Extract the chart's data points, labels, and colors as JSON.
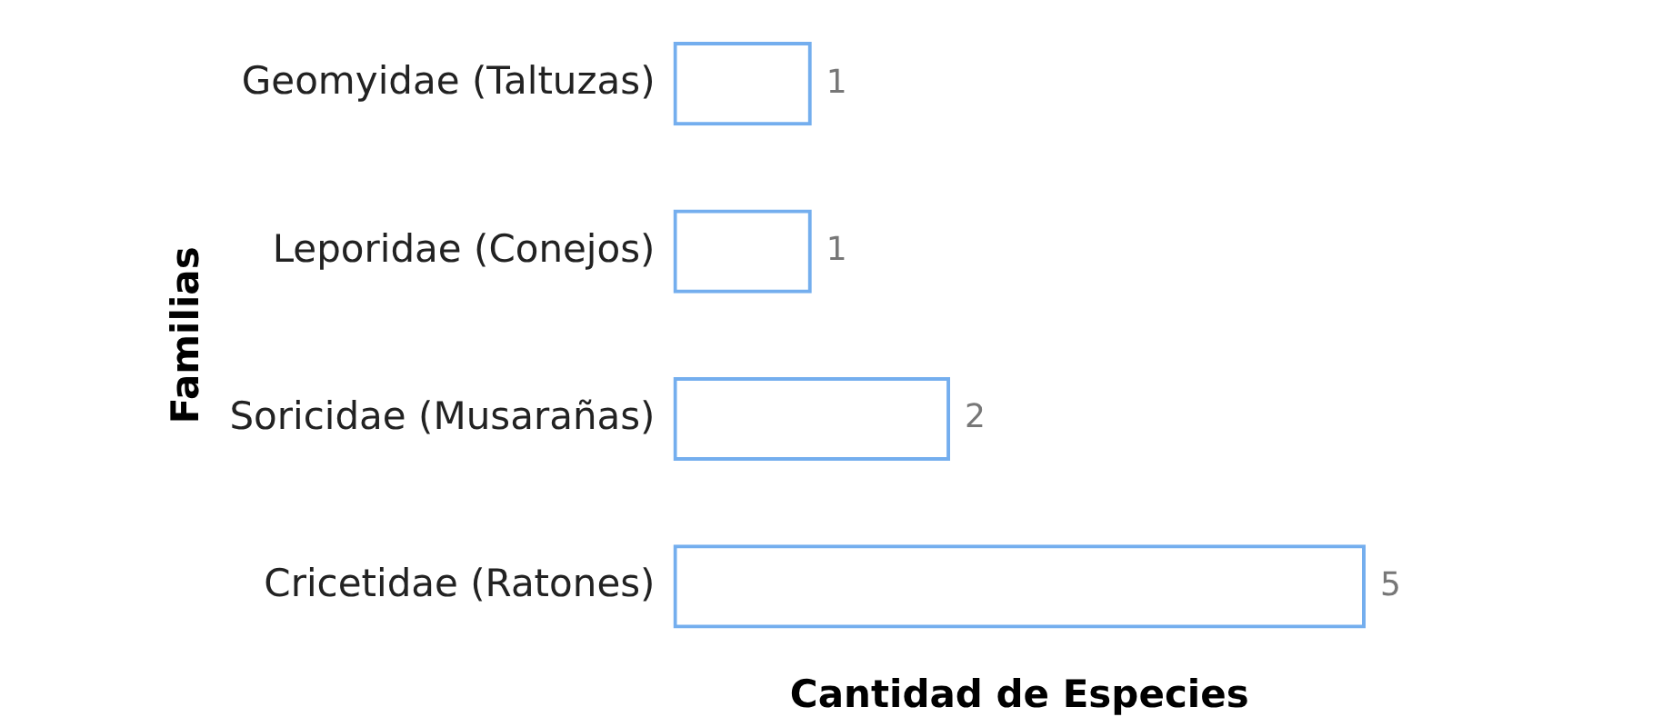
{
  "chart_data": {
    "type": "bar",
    "orientation": "horizontal",
    "categories": [
      "Geomyidae (Taltuzas)",
      "Leporidae (Conejos)",
      "Soricidae (Musarañas)",
      "Cricetidae (Ratones)"
    ],
    "values": [
      1,
      1,
      2,
      5
    ],
    "color": "#74aeee",
    "data_labels": true,
    "tick_labels": "y",
    "xlabel": "Cantidad de Especies",
    "ylabel": "Familias"
  }
}
